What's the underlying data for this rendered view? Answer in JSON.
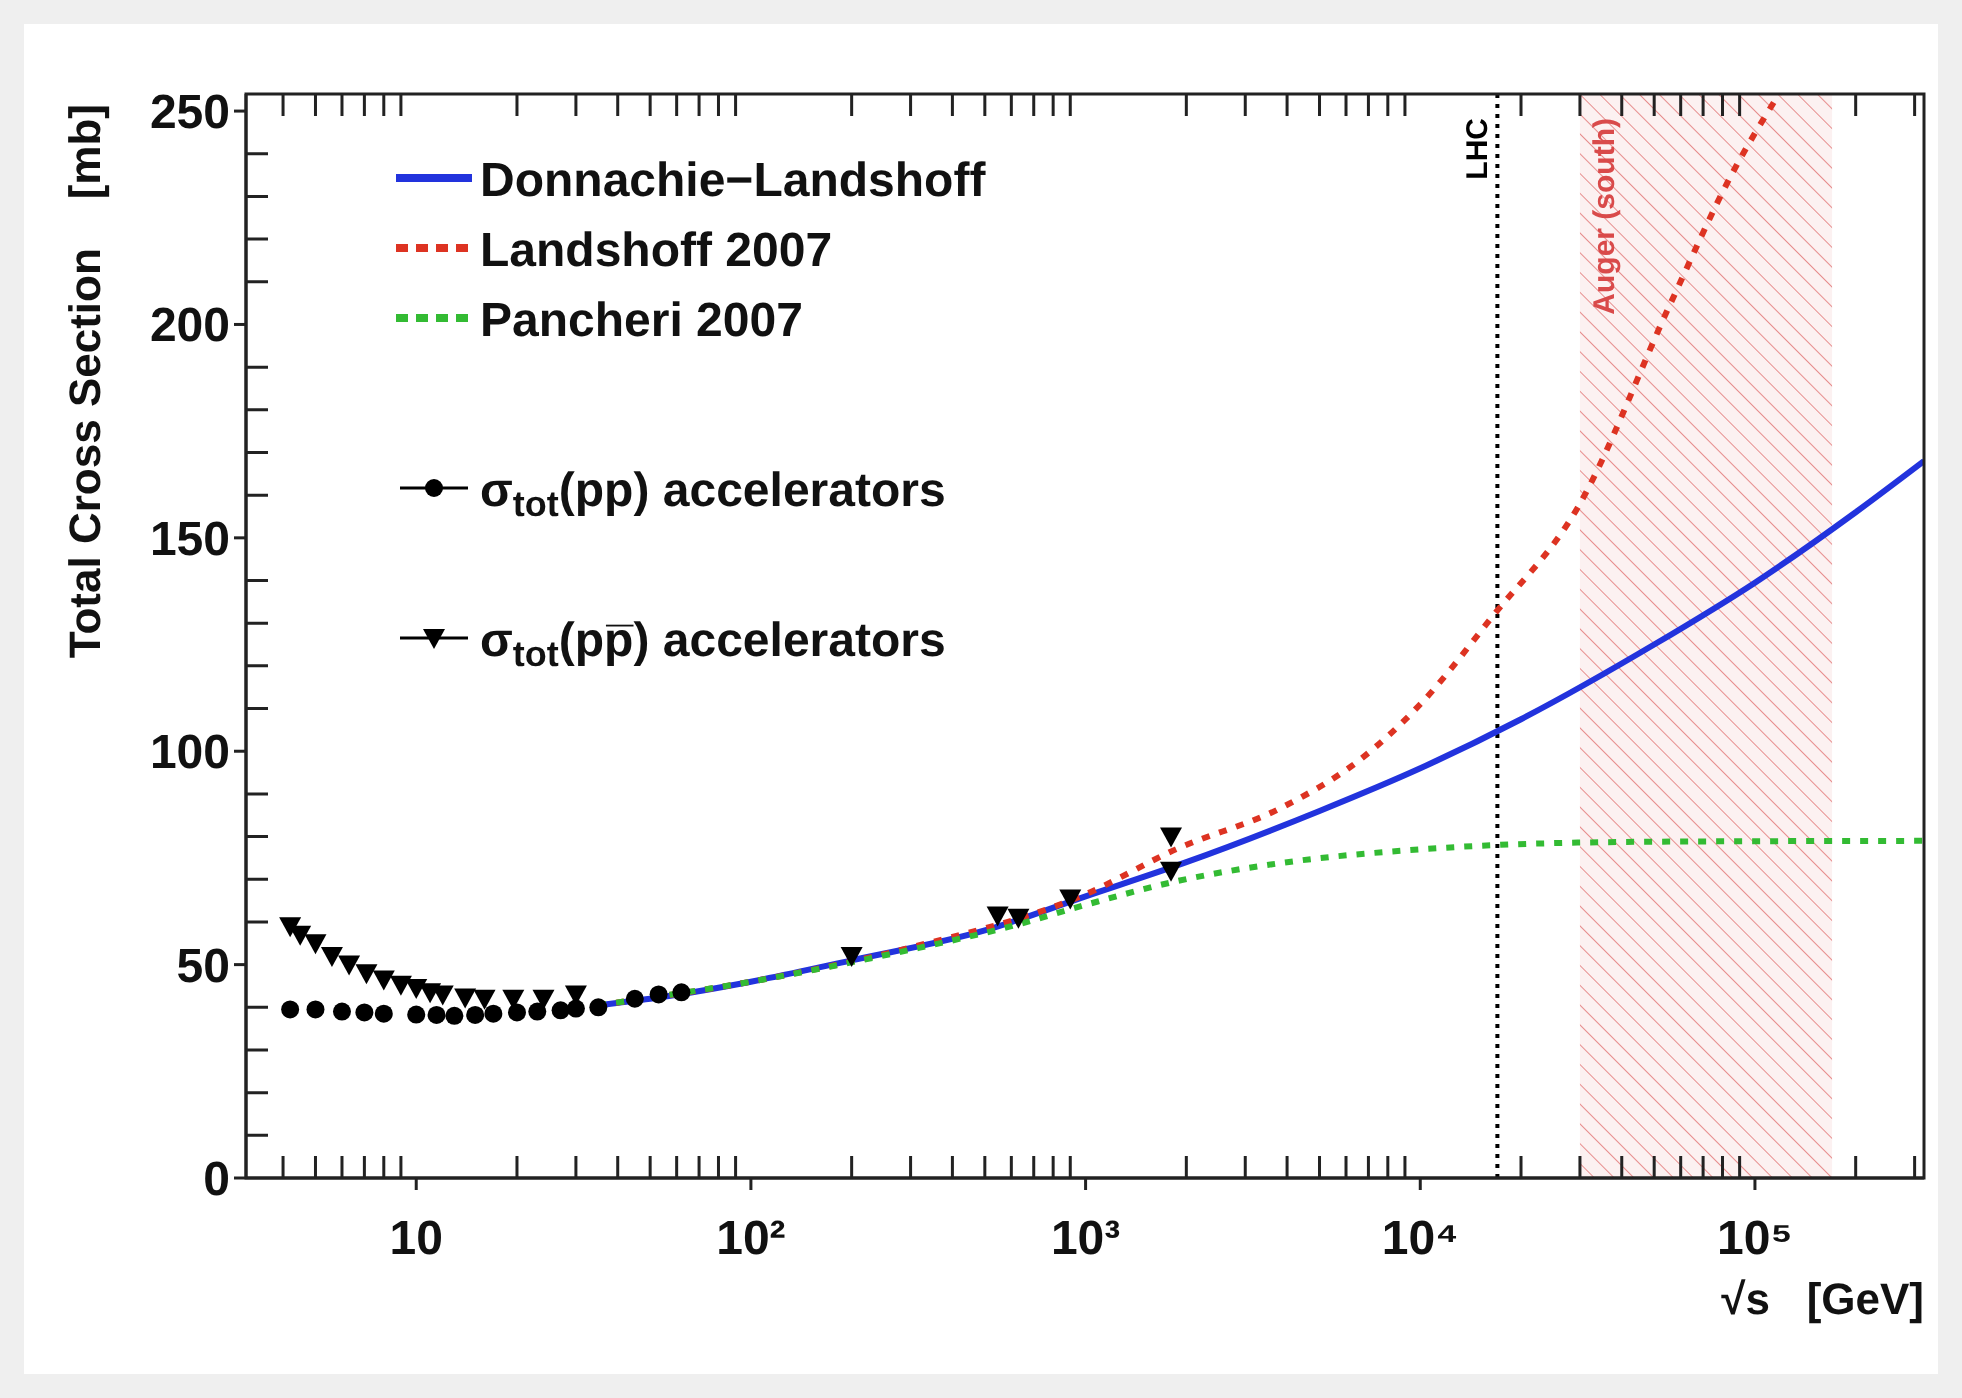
{
  "chart_data": {
    "type": "line",
    "xlabel": "√s   [GeV]",
    "ylabel": "Total Cross Section    [mb]",
    "log": "x",
    "xlim": [
      3.1,
      320000
    ],
    "ylim": [
      0,
      254
    ],
    "xticks": [
      10,
      {
        "value": 100,
        "label": "10²"
      },
      {
        "value": 1000,
        "label": "10³"
      },
      {
        "value": 10000,
        "label": "10⁴"
      },
      {
        "value": 100000,
        "label": "10⁵"
      }
    ],
    "yticks": [
      0,
      50,
      100,
      150,
      200,
      250
    ],
    "grid": false,
    "legend": "top left",
    "ref_lines": [
      {
        "axis": "x",
        "value": 17000,
        "label": "LHC",
        "color": "#000000",
        "line_style": "dotted"
      }
    ],
    "bands": [
      {
        "axis": "x",
        "from": 30000,
        "to": 170000,
        "label": "Auger (south)",
        "color": "#d94a4a"
      }
    ],
    "series": [
      {
        "name": "Donnachie−Landshoff",
        "type": "line",
        "color": "#2233dd",
        "line_style": "solid",
        "marker": "none",
        "x": [
          35,
          50,
          100,
          200,
          500,
          1000,
          2000,
          5000,
          10000,
          20000,
          50000,
          100000,
          200000,
          320000
        ],
        "values": [
          40.5,
          42,
          46,
          51,
          58,
          66,
          74,
          86,
          96,
          107.5,
          125,
          139.5,
          156,
          168
        ]
      },
      {
        "name": "Landshoff 2007",
        "type": "line",
        "color": "#dd3322",
        "line_style": "dashed",
        "marker": "none",
        "x": [
          35,
          100,
          300,
          1000,
          1860,
          3900,
          6600,
          10000,
          16600,
          29500,
          56000,
          85000,
          118000
        ],
        "values": [
          40.5,
          46,
          54,
          66.5,
          77,
          87,
          98,
          111,
          132,
          157,
          205,
          235,
          254
        ]
      },
      {
        "name": "Pancheri 2007",
        "type": "line",
        "color": "#33bb33",
        "line_style": "dashed",
        "marker": "none",
        "x": [
          35,
          100,
          300,
          600,
          1000,
          1860,
          4000,
          10000,
          16600,
          50000,
          320000
        ],
        "values": [
          40.5,
          46,
          53.5,
          59,
          64,
          69.5,
          74,
          77,
          78,
          78.8,
          79
        ]
      },
      {
        "name": "σ$_{tot}$(pp) accelerators",
        "type": "scatter",
        "color": "#000000",
        "marker": "circle",
        "x": [
          4.2,
          5,
          6,
          7,
          8,
          10,
          11.5,
          13,
          15,
          17,
          20,
          23,
          27,
          30,
          35,
          45,
          53,
          62
        ],
        "values": [
          39.5,
          39.5,
          39,
          38.8,
          38.5,
          38.3,
          38.2,
          38,
          38.2,
          38.5,
          38.8,
          39,
          39.3,
          39.7,
          40,
          42,
          43,
          43.5
        ]
      },
      {
        "name": "σ$_{tot}$(pp̅) accelerators",
        "type": "scatter",
        "color": "#000000",
        "marker": "triangle",
        "x": [
          4.2,
          4.5,
          5,
          5.6,
          6.3,
          7.1,
          8,
          9,
          10,
          11,
          12,
          14,
          16,
          19.5,
          24,
          30,
          200,
          546,
          630,
          900,
          1800,
          1800
        ],
        "values": [
          59,
          57,
          55,
          52,
          50,
          48,
          46.5,
          45.3,
          44.5,
          43.5,
          43,
          42.3,
          42,
          42,
          42,
          43,
          52,
          61.5,
          61,
          65.5,
          72,
          80
        ]
      }
    ]
  }
}
